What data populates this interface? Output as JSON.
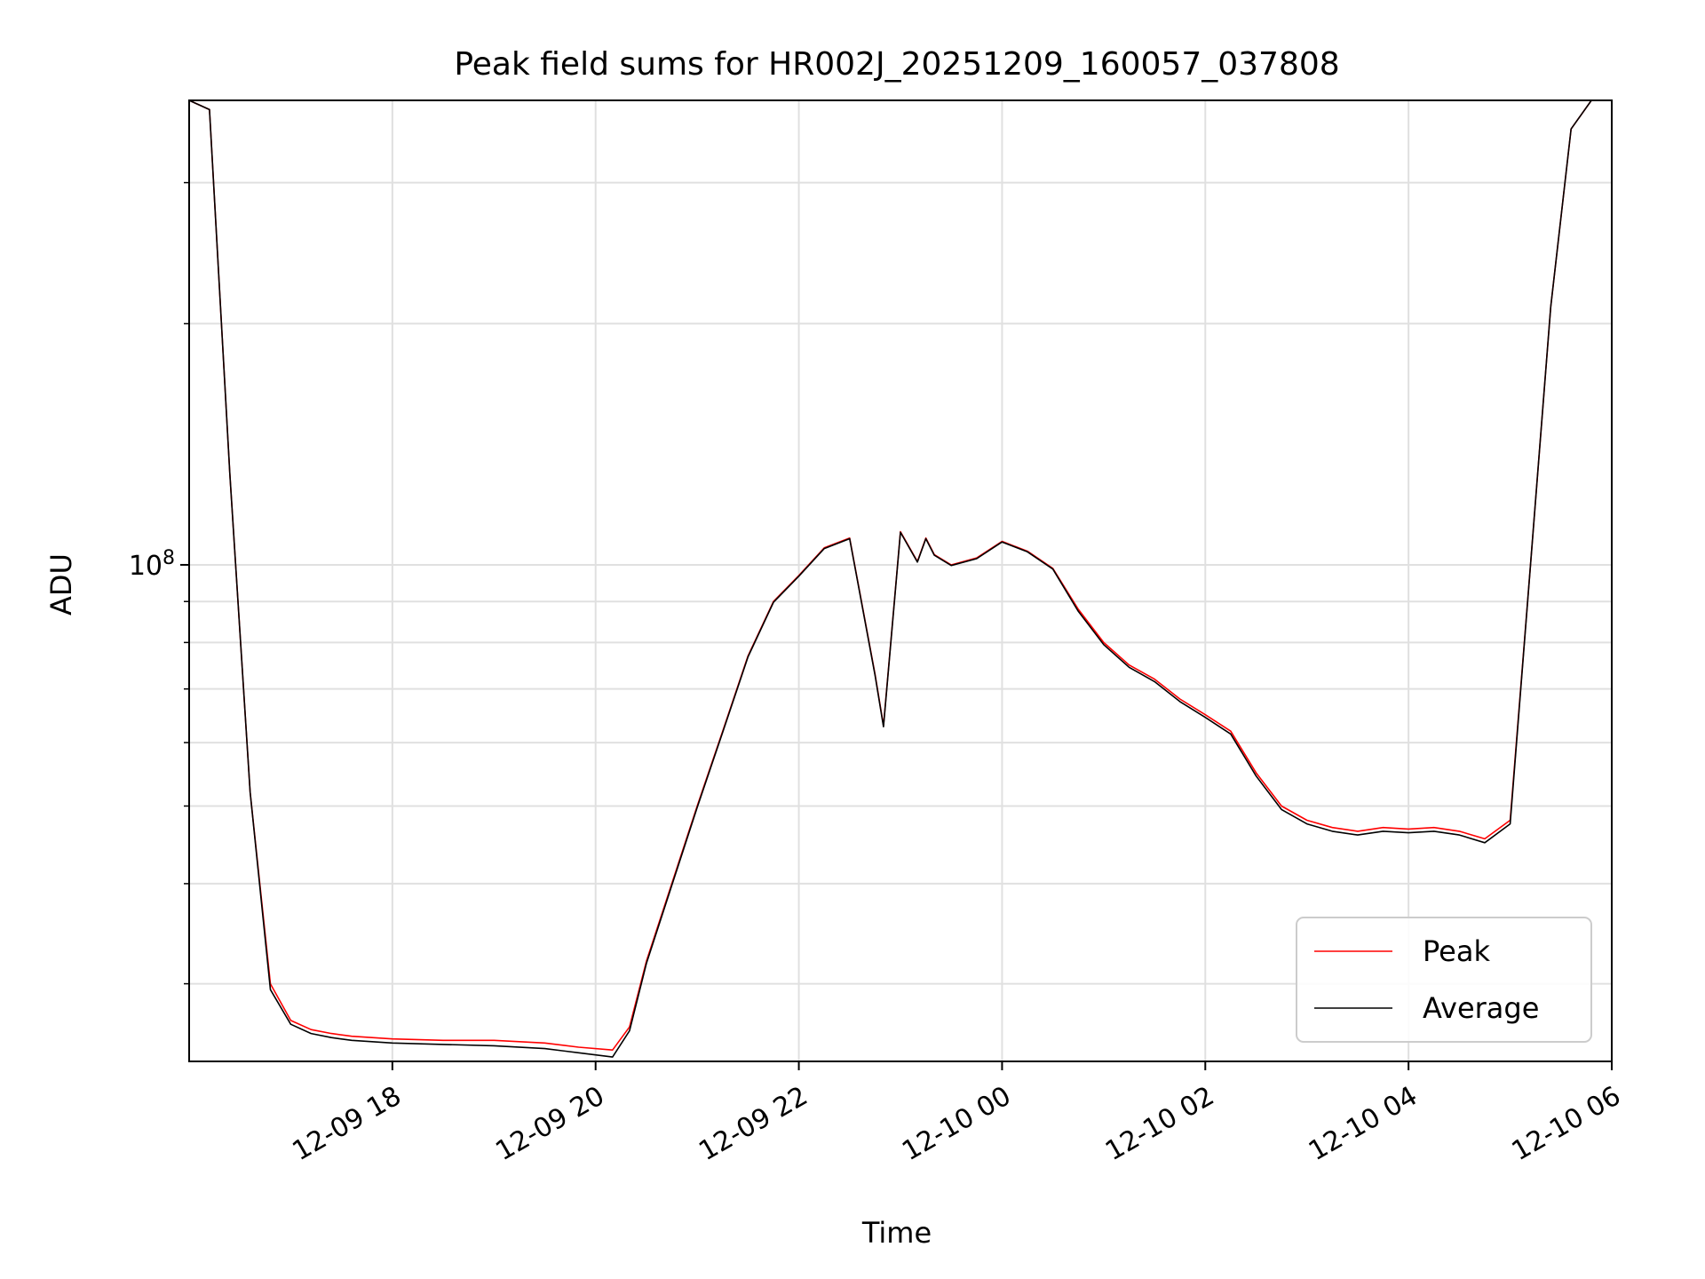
{
  "chart_data": {
    "type": "line",
    "title": "Peak field sums for HR002J_20251209_160057_037808",
    "xlabel": "Time",
    "ylabel": "ADU",
    "y_scale": "log",
    "ylim": [
      24000000,
      380000000
    ],
    "xlim": [
      "2025-12-09 16:00",
      "2025-12-10 06:00"
    ],
    "x_ticks": [
      "12-09 18",
      "12-09 20",
      "12-09 22",
      "12-10 00",
      "12-10 02",
      "12-10 04",
      "12-10 06"
    ],
    "y_tick_label": "10^8",
    "grid": true,
    "legend_position": "lower-right",
    "series": [
      {
        "name": "Peak",
        "color": "#ff0000",
        "x": [
          "2025-12-09 16:00",
          "2025-12-09 16:12",
          "2025-12-09 16:24",
          "2025-12-09 16:36",
          "2025-12-09 16:48",
          "2025-12-09 17:00",
          "2025-12-09 17:12",
          "2025-12-09 17:24",
          "2025-12-09 17:36",
          "2025-12-09 17:48",
          "2025-12-09 18:00",
          "2025-12-09 18:30",
          "2025-12-09 19:00",
          "2025-12-09 19:30",
          "2025-12-09 19:50",
          "2025-12-09 20:10",
          "2025-12-09 20:20",
          "2025-12-09 20:30",
          "2025-12-09 20:45",
          "2025-12-09 21:00",
          "2025-12-09 21:15",
          "2025-12-09 21:30",
          "2025-12-09 21:45",
          "2025-12-09 22:00",
          "2025-12-09 22:15",
          "2025-12-09 22:30",
          "2025-12-09 22:45",
          "2025-12-09 22:50",
          "2025-12-09 23:00",
          "2025-12-09 23:10",
          "2025-12-09 23:15",
          "2025-12-09 23:20",
          "2025-12-09 23:30",
          "2025-12-09 23:45",
          "2025-12-10 00:00",
          "2025-12-10 00:15",
          "2025-12-10 00:30",
          "2025-12-10 00:45",
          "2025-12-10 01:00",
          "2025-12-10 01:15",
          "2025-12-10 01:30",
          "2025-12-10 01:45",
          "2025-12-10 02:00",
          "2025-12-10 02:15",
          "2025-12-10 02:30",
          "2025-12-10 02:45",
          "2025-12-10 03:00",
          "2025-12-10 03:15",
          "2025-12-10 03:30",
          "2025-12-10 03:45",
          "2025-12-10 04:00",
          "2025-12-10 04:15",
          "2025-12-10 04:30",
          "2025-12-10 04:45",
          "2025-12-10 05:00",
          "2025-12-10 05:12",
          "2025-12-10 05:24",
          "2025-12-10 05:36",
          "2025-12-10 05:48",
          "2025-12-10 06:00"
        ],
        "values": [
          380000000,
          370000000,
          130000000,
          52000000,
          30000000,
          27000000,
          26300000,
          26000000,
          25800000,
          25700000,
          25600000,
          25500000,
          25500000,
          25300000,
          25000000,
          24800000,
          26500000,
          32000000,
          40000000,
          50000000,
          62000000,
          77000000,
          90000000,
          97000000,
          105000000,
          108000000,
          73000000,
          63000000,
          110000000,
          101000000,
          108000000,
          103000000,
          100000000,
          102000000,
          107000000,
          104000000,
          99000000,
          88000000,
          80000000,
          75000000,
          72000000,
          68000000,
          65000000,
          62000000,
          55000000,
          50000000,
          48000000,
          47000000,
          46500000,
          47000000,
          46800000,
          47000000,
          46500000,
          45500000,
          48000000,
          100000000,
          210000000,
          350000000,
          380000000,
          380000000
        ]
      },
      {
        "name": "Average",
        "color": "#000000",
        "x": [
          "2025-12-09 16:00",
          "2025-12-09 16:12",
          "2025-12-09 16:24",
          "2025-12-09 16:36",
          "2025-12-09 16:48",
          "2025-12-09 17:00",
          "2025-12-09 17:12",
          "2025-12-09 17:24",
          "2025-12-09 17:36",
          "2025-12-09 17:48",
          "2025-12-09 18:00",
          "2025-12-09 18:30",
          "2025-12-09 19:00",
          "2025-12-09 19:30",
          "2025-12-09 19:50",
          "2025-12-09 20:10",
          "2025-12-09 20:20",
          "2025-12-09 20:30",
          "2025-12-09 20:45",
          "2025-12-09 21:00",
          "2025-12-09 21:15",
          "2025-12-09 21:30",
          "2025-12-09 21:45",
          "2025-12-09 22:00",
          "2025-12-09 22:15",
          "2025-12-09 22:30",
          "2025-12-09 22:45",
          "2025-12-09 22:50",
          "2025-12-09 23:00",
          "2025-12-09 23:10",
          "2025-12-09 23:15",
          "2025-12-09 23:20",
          "2025-12-09 23:30",
          "2025-12-09 23:45",
          "2025-12-10 00:00",
          "2025-12-10 00:15",
          "2025-12-10 00:30",
          "2025-12-10 00:45",
          "2025-12-10 01:00",
          "2025-12-10 01:15",
          "2025-12-10 01:30",
          "2025-12-10 01:45",
          "2025-12-10 02:00",
          "2025-12-10 02:15",
          "2025-12-10 02:30",
          "2025-12-10 02:45",
          "2025-12-10 03:00",
          "2025-12-10 03:15",
          "2025-12-10 03:30",
          "2025-12-10 03:45",
          "2025-12-10 04:00",
          "2025-12-10 04:15",
          "2025-12-10 04:30",
          "2025-12-10 04:45",
          "2025-12-10 05:00",
          "2025-12-10 05:12",
          "2025-12-10 05:24",
          "2025-12-10 05:36",
          "2025-12-10 05:48",
          "2025-12-10 06:00"
        ],
        "values": [
          380000000,
          370000000,
          130000000,
          52000000,
          29500000,
          26700000,
          26000000,
          25700000,
          25500000,
          25400000,
          25300000,
          25200000,
          25100000,
          24900000,
          24600000,
          24300000,
          26200000,
          31800000,
          39800000,
          49800000,
          61800000,
          76800000,
          89800000,
          96800000,
          104800000,
          107800000,
          72800000,
          62800000,
          109800000,
          100800000,
          107800000,
          102800000,
          99800000,
          101800000,
          106800000,
          103800000,
          98800000,
          87500000,
          79500000,
          74500000,
          71500000,
          67500000,
          64500000,
          61500000,
          54500000,
          49500000,
          47500000,
          46500000,
          46000000,
          46500000,
          46300000,
          46500000,
          46000000,
          45000000,
          47500000,
          100000000,
          210000000,
          350000000,
          380000000,
          380000000
        ]
      }
    ]
  }
}
